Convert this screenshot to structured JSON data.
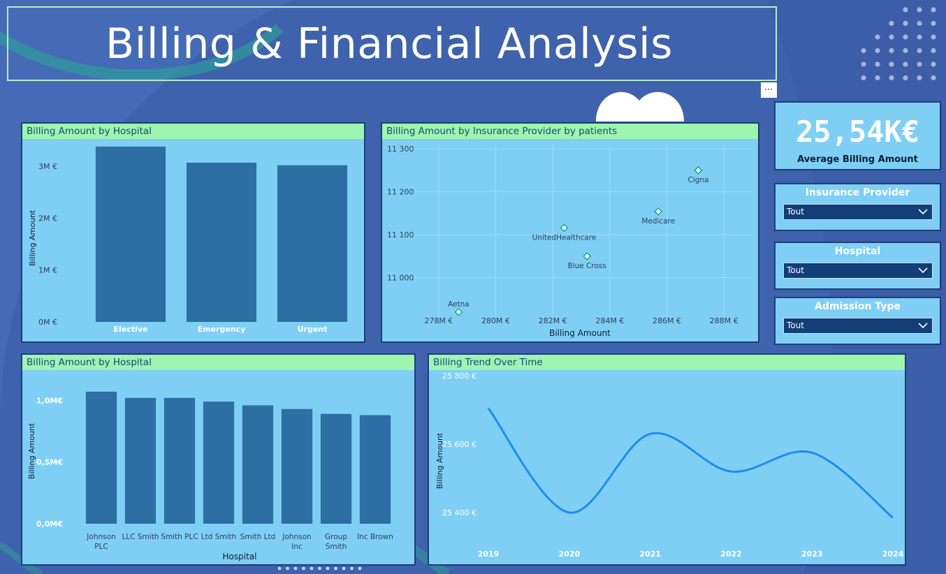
{
  "title": "Billing & Financial Analysis",
  "more_button": "⋯",
  "kpi": {
    "value": "25,54K€",
    "label": "Average Billing Amount"
  },
  "slicers": [
    {
      "title": "Insurance Provider",
      "value": "Tout"
    },
    {
      "title": "Hospital",
      "value": "Tout"
    },
    {
      "title": "Admission Type",
      "value": "Tout"
    }
  ],
  "colors": {
    "bar": "#2b6fa3",
    "line": "#1d8cf0",
    "panel": "#7fcff5",
    "header": "#9df5b0"
  },
  "chart_data": [
    {
      "type": "bar",
      "title": "Billing Amount by Hospital",
      "xlabel": "",
      "ylabel": "Billing Amount",
      "categories": [
        "Elective",
        "Emergency",
        "Urgent"
      ],
      "values": [
        3.38,
        3.07,
        3.02
      ],
      "ylim": [
        0,
        3.5
      ],
      "yticks": [
        0,
        1,
        2,
        3
      ],
      "ytick_labels": [
        "0M €",
        "1M €",
        "2M €",
        "3M €"
      ]
    },
    {
      "type": "scatter",
      "title": "Billing Amount by Insurance Provider by patients",
      "xlabel": "Billing Amount",
      "ylabel": "",
      "points": [
        {
          "label": "Aetna",
          "x": 278.7,
          "y": 10920
        },
        {
          "label": "UnitedHealthcare",
          "x": 282.4,
          "y": 11116
        },
        {
          "label": "Blue Cross",
          "x": 283.2,
          "y": 11050
        },
        {
          "label": "Medicare",
          "x": 285.7,
          "y": 11154
        },
        {
          "label": "Cigna",
          "x": 287.1,
          "y": 11250
        }
      ],
      "xlim": [
        277,
        289
      ],
      "ylim": [
        10910,
        11310
      ],
      "xticks": [
        278,
        280,
        282,
        284,
        286,
        288
      ],
      "xtick_labels": [
        "278M €",
        "280M €",
        "282M €",
        "284M €",
        "286M €",
        "288M €"
      ],
      "yticks": [
        11000,
        11100,
        11200,
        11300
      ],
      "ytick_labels": [
        "11 000",
        "11 100",
        "11 200",
        "11 300"
      ]
    },
    {
      "type": "bar",
      "title": "Billing Amount by Hospital",
      "xlabel": "Hospital",
      "ylabel": "Billing Amount",
      "categories": [
        "Johnson PLC",
        "LLC Smith",
        "Smith PLC",
        "Ltd Smith",
        "Smith Ltd",
        "Johnson Inc",
        "Group Smith",
        "Inc Brown"
      ],
      "category_lines": [
        [
          "Johnson",
          "PLC"
        ],
        [
          "LLC Smith"
        ],
        [
          "Smith PLC"
        ],
        [
          "Ltd Smith"
        ],
        [
          "Smith Ltd"
        ],
        [
          "Johnson",
          "Inc"
        ],
        [
          "Group",
          "Smith"
        ],
        [
          "Inc Brown"
        ]
      ],
      "values": [
        1.07,
        1.02,
        1.02,
        0.99,
        0.96,
        0.93,
        0.89,
        0.88
      ],
      "ylim": [
        0,
        1.2
      ],
      "yticks": [
        0,
        0.5,
        1.0
      ],
      "ytick_labels": [
        "0,0M€",
        "0,5M€",
        "1,0M€"
      ]
    },
    {
      "type": "line",
      "title": "Billing Trend Over Time",
      "xlabel": "",
      "ylabel": "Billing Amount",
      "x": [
        "2019",
        "2020",
        "2021",
        "2022",
        "2023",
        "2024"
      ],
      "values": [
        25705,
        25400,
        25630,
        25520,
        25575,
        25385
      ],
      "ylim": [
        25300,
        25800
      ],
      "yticks": [
        25400,
        25600,
        25800
      ],
      "ytick_labels": [
        "25 400 €",
        "25 600 €",
        "25 800 €"
      ]
    }
  ]
}
